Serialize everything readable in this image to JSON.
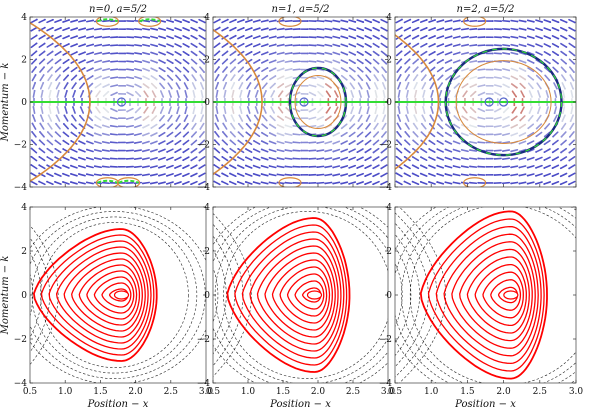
{
  "chart_data": [
    {
      "type": "vector-field",
      "panel": "top-left",
      "title": "n=0, a=5/2",
      "ylabel": "Momentum − k",
      "xlim": [
        0.5,
        3.0
      ],
      "ylim": [
        -4,
        4
      ],
      "xticks": [
        "0.5",
        "1.0",
        "1.5",
        "2.0",
        "2.5",
        "3.0"
      ],
      "yticks": [
        "4",
        "2",
        "0",
        "−2",
        "−4"
      ],
      "fixed_points": [
        [
          1.8,
          0
        ]
      ],
      "separatrix_vertex_x": 1.35,
      "nullcline_k": 0,
      "pump_ring": null
    },
    {
      "type": "vector-field",
      "panel": "top-middle",
      "title": "n=1, a=5/2",
      "xlim": [
        0.5,
        3.0
      ],
      "ylim": [
        -4,
        4
      ],
      "xticks": [
        "0.5",
        "1.0",
        "1.5",
        "2.0",
        "2.5",
        "3.0"
      ],
      "yticks": [
        "4",
        "2",
        "0",
        "−2",
        "−4"
      ],
      "fixed_points": [
        [
          1.8,
          0
        ]
      ],
      "separatrix_vertex_x": 1.2,
      "nullcline_k": 0,
      "pump_ring": [
        1.6,
        2.4,
        1.6
      ]
    },
    {
      "type": "vector-field",
      "panel": "top-right",
      "title": "n=2, a=5/2",
      "xlim": [
        0.5,
        3.0
      ],
      "ylim": [
        -4,
        4
      ],
      "xticks": [
        "0.5",
        "1.0",
        "1.5",
        "2.0",
        "2.5",
        "3.0"
      ],
      "yticks": [
        "4",
        "2",
        "0",
        "−2",
        "−4"
      ],
      "fixed_points": [
        [
          1.8,
          0
        ],
        [
          2.0,
          0
        ]
      ],
      "separatrix_vertex_x": 1.1,
      "nullcline_k": 0,
      "pump_ring": [
        1.2,
        2.8,
        2.5
      ]
    },
    {
      "type": "contour",
      "panel": "bottom-left",
      "xlabel": "Position − x",
      "ylabel": "Momentum − k",
      "xlim": [
        0.5,
        3.0
      ],
      "ylim": [
        -4,
        4
      ],
      "xticks": [
        "0.5",
        "1.0",
        "1.5",
        "2.0",
        "2.5",
        "3.0"
      ],
      "yticks": [
        "4",
        "2",
        "0",
        "−2",
        "−4"
      ],
      "center": [
        1.8,
        0
      ],
      "closed_orbit_max_k": 3.0
    },
    {
      "type": "contour",
      "panel": "bottom-middle",
      "xlabel": "Position − x",
      "xlim": [
        0.5,
        3.0
      ],
      "ylim": [
        -4,
        4
      ],
      "xticks": [
        "0.5",
        "1.0",
        "1.5",
        "2.0",
        "2.5",
        "3.0"
      ],
      "yticks": [
        "4",
        "2",
        "0",
        "−2",
        "−4"
      ],
      "center": [
        1.95,
        0
      ],
      "closed_orbit_max_k": 3.5
    },
    {
      "type": "contour",
      "panel": "bottom-right",
      "xlabel": "Position − x",
      "xlim": [
        0.5,
        3.0
      ],
      "ylim": [
        -4,
        4
      ],
      "xticks": [
        "0.5",
        "1.0",
        "1.5",
        "2.0",
        "2.5",
        "3.0"
      ],
      "yticks": [
        "4",
        "2",
        "0",
        "−2",
        "−4"
      ],
      "center": [
        2.1,
        0
      ],
      "closed_orbit_max_k": 3.8
    }
  ],
  "colors": {
    "arrow_low": "#3030c0",
    "arrow_high": "#c03020",
    "separatrix": "#d8893c",
    "nullcline": "#33dd33",
    "orbit": "#ff0000",
    "dashed": "#222222",
    "ring": "#1a2a80"
  }
}
